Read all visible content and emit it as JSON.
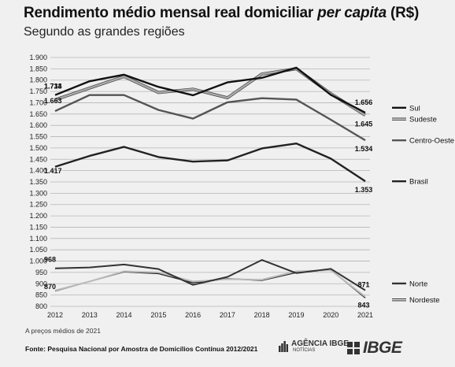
{
  "header": {
    "title_main": "Rendimento médio mensal real domiciliar ",
    "title_em": "per capita",
    "title_end": " (R$)",
    "subtitle": "Segundo as grandes regiões"
  },
  "footer": {
    "note": "A preços médios de 2021",
    "source": "Fonte: Pesquisa Nacional por Amostra de Domicílios Contínua 2012/2021",
    "logo_agencia": "AGÊNCIA IBGE",
    "logo_agencia_small": "NOTÍCIAS",
    "logo_ibge": "IBGE"
  },
  "chart_data": {
    "type": "line",
    "title": "Rendimento médio mensal real domiciliar per capita (R$)",
    "subtitle": "Segundo as grandes regiões",
    "x": [
      "2012",
      "2013",
      "2014",
      "2015",
      "2016",
      "2017",
      "2018",
      "2019",
      "2020",
      "2021"
    ],
    "ylim": [
      800,
      1900
    ],
    "yticks": [
      "800",
      "850",
      "900",
      "950",
      "1.000",
      "1.050",
      "1.100",
      "1.150",
      "1.200",
      "1.250",
      "1.300",
      "1.350",
      "1.400",
      "1.450",
      "1.500",
      "1.550",
      "1.600",
      "1.650",
      "1.700",
      "1.750",
      "1.800",
      "1.850",
      "1.900"
    ],
    "grid": true,
    "series": [
      {
        "name": "Sul",
        "color": "#111111",
        "width": 2.4,
        "values": [
          1734,
          1795,
          1824,
          1770,
          1733,
          1790,
          1810,
          1855,
          1735,
          1656
        ],
        "start_label": "1.734",
        "end_label": "1.656"
      },
      {
        "name": "Sudeste",
        "color": "#aaaaaa",
        "width": 2.4,
        "values": [
          1713,
          1765,
          1816,
          1745,
          1760,
          1722,
          1827,
          1850,
          1740,
          1645
        ],
        "start_label": "1.713",
        "end_label": "1.645"
      },
      {
        "name": "Centro-Oeste",
        "color": "#555555",
        "width": 2.4,
        "values": [
          1663,
          1734,
          1734,
          1668,
          1630,
          1702,
          1720,
          1714,
          1625,
          1534
        ],
        "start_label": "1.663",
        "end_label": "1.534"
      },
      {
        "name": "Brasil",
        "color": "#222222",
        "width": 2.4,
        "values": [
          1417,
          1465,
          1505,
          1460,
          1440,
          1445,
          1498,
          1520,
          1453,
          1353
        ],
        "start_label": "1.417",
        "end_label": "1.353"
      },
      {
        "name": "Norte",
        "color": "#333333",
        "width": 2.0,
        "values": [
          968,
          972,
          985,
          965,
          895,
          930,
          1005,
          947,
          966,
          871
        ],
        "start_label": "968",
        "end_label": "871"
      },
      {
        "name": "Nordeste",
        "color": "#bbbbbb",
        "width": 2.0,
        "values": [
          870,
          910,
          955,
          950,
          910,
          920,
          918,
          955,
          960,
          843
        ],
        "start_label": "870",
        "end_label": "843"
      }
    ],
    "extra_lines": [
      {
        "color": "#222222",
        "values": [
          868,
          910,
          953,
          945,
          905,
          922,
          915,
          950,
          962,
          838
        ]
      }
    ]
  },
  "colors": {
    "background": "#f0f0f0",
    "grid": "#b5b5b5",
    "text": "#111111"
  }
}
